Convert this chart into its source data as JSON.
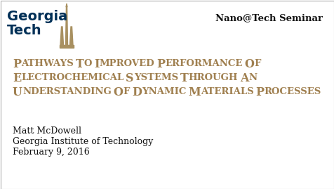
{
  "background_color": "#ffffff",
  "border_color": "#b0b0b0",
  "logo_text_georgia": "Georgia",
  "logo_text_tech": "Tech",
  "logo_color": "#003057",
  "logo_tower_color": "#a89060",
  "seminar_text": "Nano@Tech Seminar",
  "seminar_color": "#111111",
  "seminar_fontsize": 9.5,
  "title_lines": [
    "Pathways to Improved Performance of",
    "Electrochemical Systems Through an",
    "Understanding of Dynamic Materials Processes"
  ],
  "title_color": "#a08050",
  "title_fontsize_upper": 11.5,
  "title_fontsize_lower": 9.5,
  "author_text": "Matt McDowell",
  "institute_text": "Georgia Institute of Technology",
  "date_text": "February 9, 2016",
  "body_color": "#111111",
  "body_fontsize": 9.0,
  "fig_width": 4.77,
  "fig_height": 2.69,
  "dpi": 100
}
